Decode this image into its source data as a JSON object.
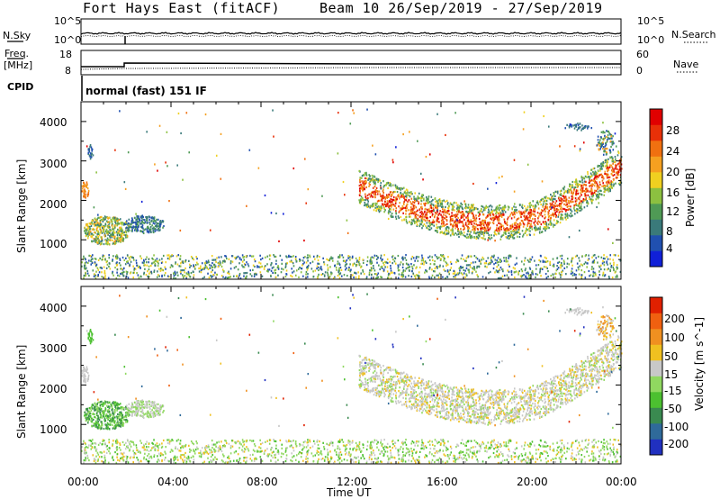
{
  "header": {
    "station": "Fort Hays East (fitACF)",
    "beam_date": "Beam 10  26/Sep/2019 - 27/Sep/2019"
  },
  "panels": {
    "nsky_label": "N.Sky",
    "nsearch_label": "N.Search",
    "nsky_ticks": [
      "10^5",
      "10^0"
    ],
    "nsearch_ticks": [
      "10^5",
      "10^0"
    ],
    "freq_label_1": "Freq.",
    "freq_label_2": "[MHz]",
    "freq_ticks": [
      "18",
      "8"
    ],
    "nave_label": "Nave",
    "nave_ticks": [
      "60",
      "0"
    ],
    "cpid_label": "CPID",
    "cpid_text": "normal (fast) 151 IF"
  },
  "chart_data": [
    {
      "type": "heatmap",
      "name": "power",
      "ylabel": "Slant Range [km]",
      "yticks": [
        "4000",
        "3000",
        "2000",
        "1000"
      ],
      "colorbar_label": "Power [dB]",
      "colorbar_ticks": [
        "28",
        "24",
        "20",
        "16",
        "12",
        "8",
        "4"
      ],
      "colorbar_colors": [
        "#1020d8",
        "#2050b0",
        "#3a7a7a",
        "#4f9a55",
        "#8cc040",
        "#f0d020",
        "#f5a020",
        "#f07010",
        "#e83008",
        "#e00000"
      ]
    },
    {
      "type": "heatmap",
      "name": "velocity",
      "ylabel": "Slant Range [km]",
      "yticks": [
        "4000",
        "3000",
        "2000",
        "1000"
      ],
      "colorbar_label": "Velocity [m s^-1]",
      "colorbar_ticks": [
        "200",
        "100",
        "50",
        "15",
        "-15",
        "-50",
        "-100",
        "-200"
      ],
      "colorbar_colors": [
        "#2030c0",
        "#2f6a9a",
        "#3a8a50",
        "#4cc030",
        "#90d860",
        "#c8c8c8",
        "#f0c020",
        "#f09020",
        "#f06010",
        "#e02000"
      ]
    }
  ],
  "xaxis": {
    "ticks": [
      "00:00",
      "04:00",
      "08:00",
      "12:00",
      "16:00",
      "20:00",
      "00:00"
    ],
    "label": "Time UT"
  }
}
